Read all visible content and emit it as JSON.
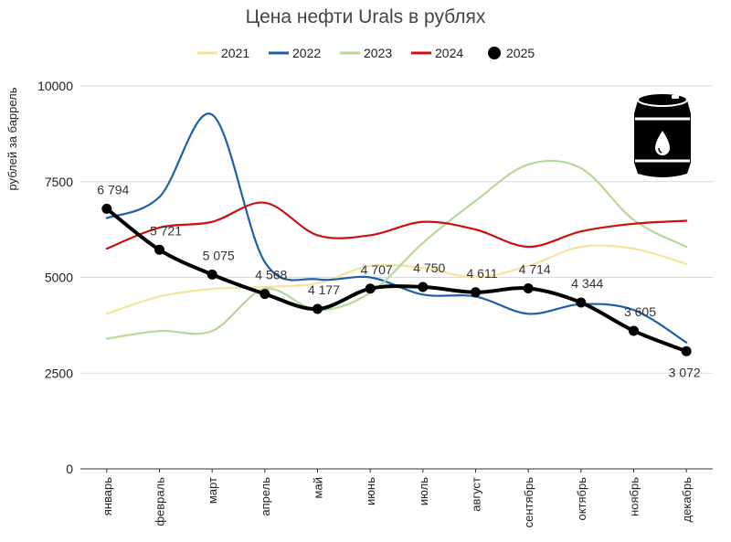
{
  "chart_data": {
    "type": "line",
    "title": "Цена нефти Urals в рублях",
    "ylabel": "рублей за баррель",
    "xlabel": "",
    "ylim": [
      0,
      10000
    ],
    "yticks": [
      "0",
      "2500",
      "5000",
      "7500",
      "10000"
    ],
    "ytick_values": [
      0,
      2500,
      5000,
      7500,
      10000
    ],
    "categories": [
      "январь",
      "февраль",
      "март",
      "апрель",
      "май",
      "июнь",
      "июль",
      "август",
      "сентябрь",
      "октябрь",
      "ноябрь",
      "декабрь"
    ],
    "legend_position": "top",
    "grid": true,
    "series": [
      {
        "name": "2021",
        "color": "#f7e29b",
        "values": [
          4050,
          4500,
          4700,
          4750,
          4850,
          5300,
          5250,
          5000,
          5300,
          5800,
          5750,
          5350
        ]
      },
      {
        "name": "2022",
        "color": "#1f5fa8",
        "values": [
          6550,
          7100,
          9250,
          5400,
          4950,
          5000,
          4550,
          4500,
          4050,
          4300,
          4150,
          3300
        ]
      },
      {
        "name": "2023",
        "color": "#b5d89c",
        "values": [
          3400,
          3600,
          3600,
          4700,
          4150,
          4600,
          5900,
          7000,
          7950,
          7850,
          6500,
          5800
        ]
      },
      {
        "name": "2024",
        "color": "#cc1010",
        "values": [
          5750,
          6300,
          6450,
          6950,
          6100,
          6100,
          6450,
          6250,
          5800,
          6200,
          6400,
          6480
        ]
      },
      {
        "name": "2025",
        "color": "#000000",
        "values": [
          6794,
          5721,
          5075,
          4568,
          4177,
          4707,
          4750,
          4611,
          4714,
          4344,
          3605,
          3072
        ],
        "data_labels": [
          "6 794",
          "5 721",
          "5 075",
          "4 568",
          "4 177",
          "4 707",
          "4 750",
          "4 611",
          "4 714",
          "4 344",
          "3 605",
          "3 072"
        ]
      }
    ]
  },
  "icon": "oil-barrel-icon"
}
